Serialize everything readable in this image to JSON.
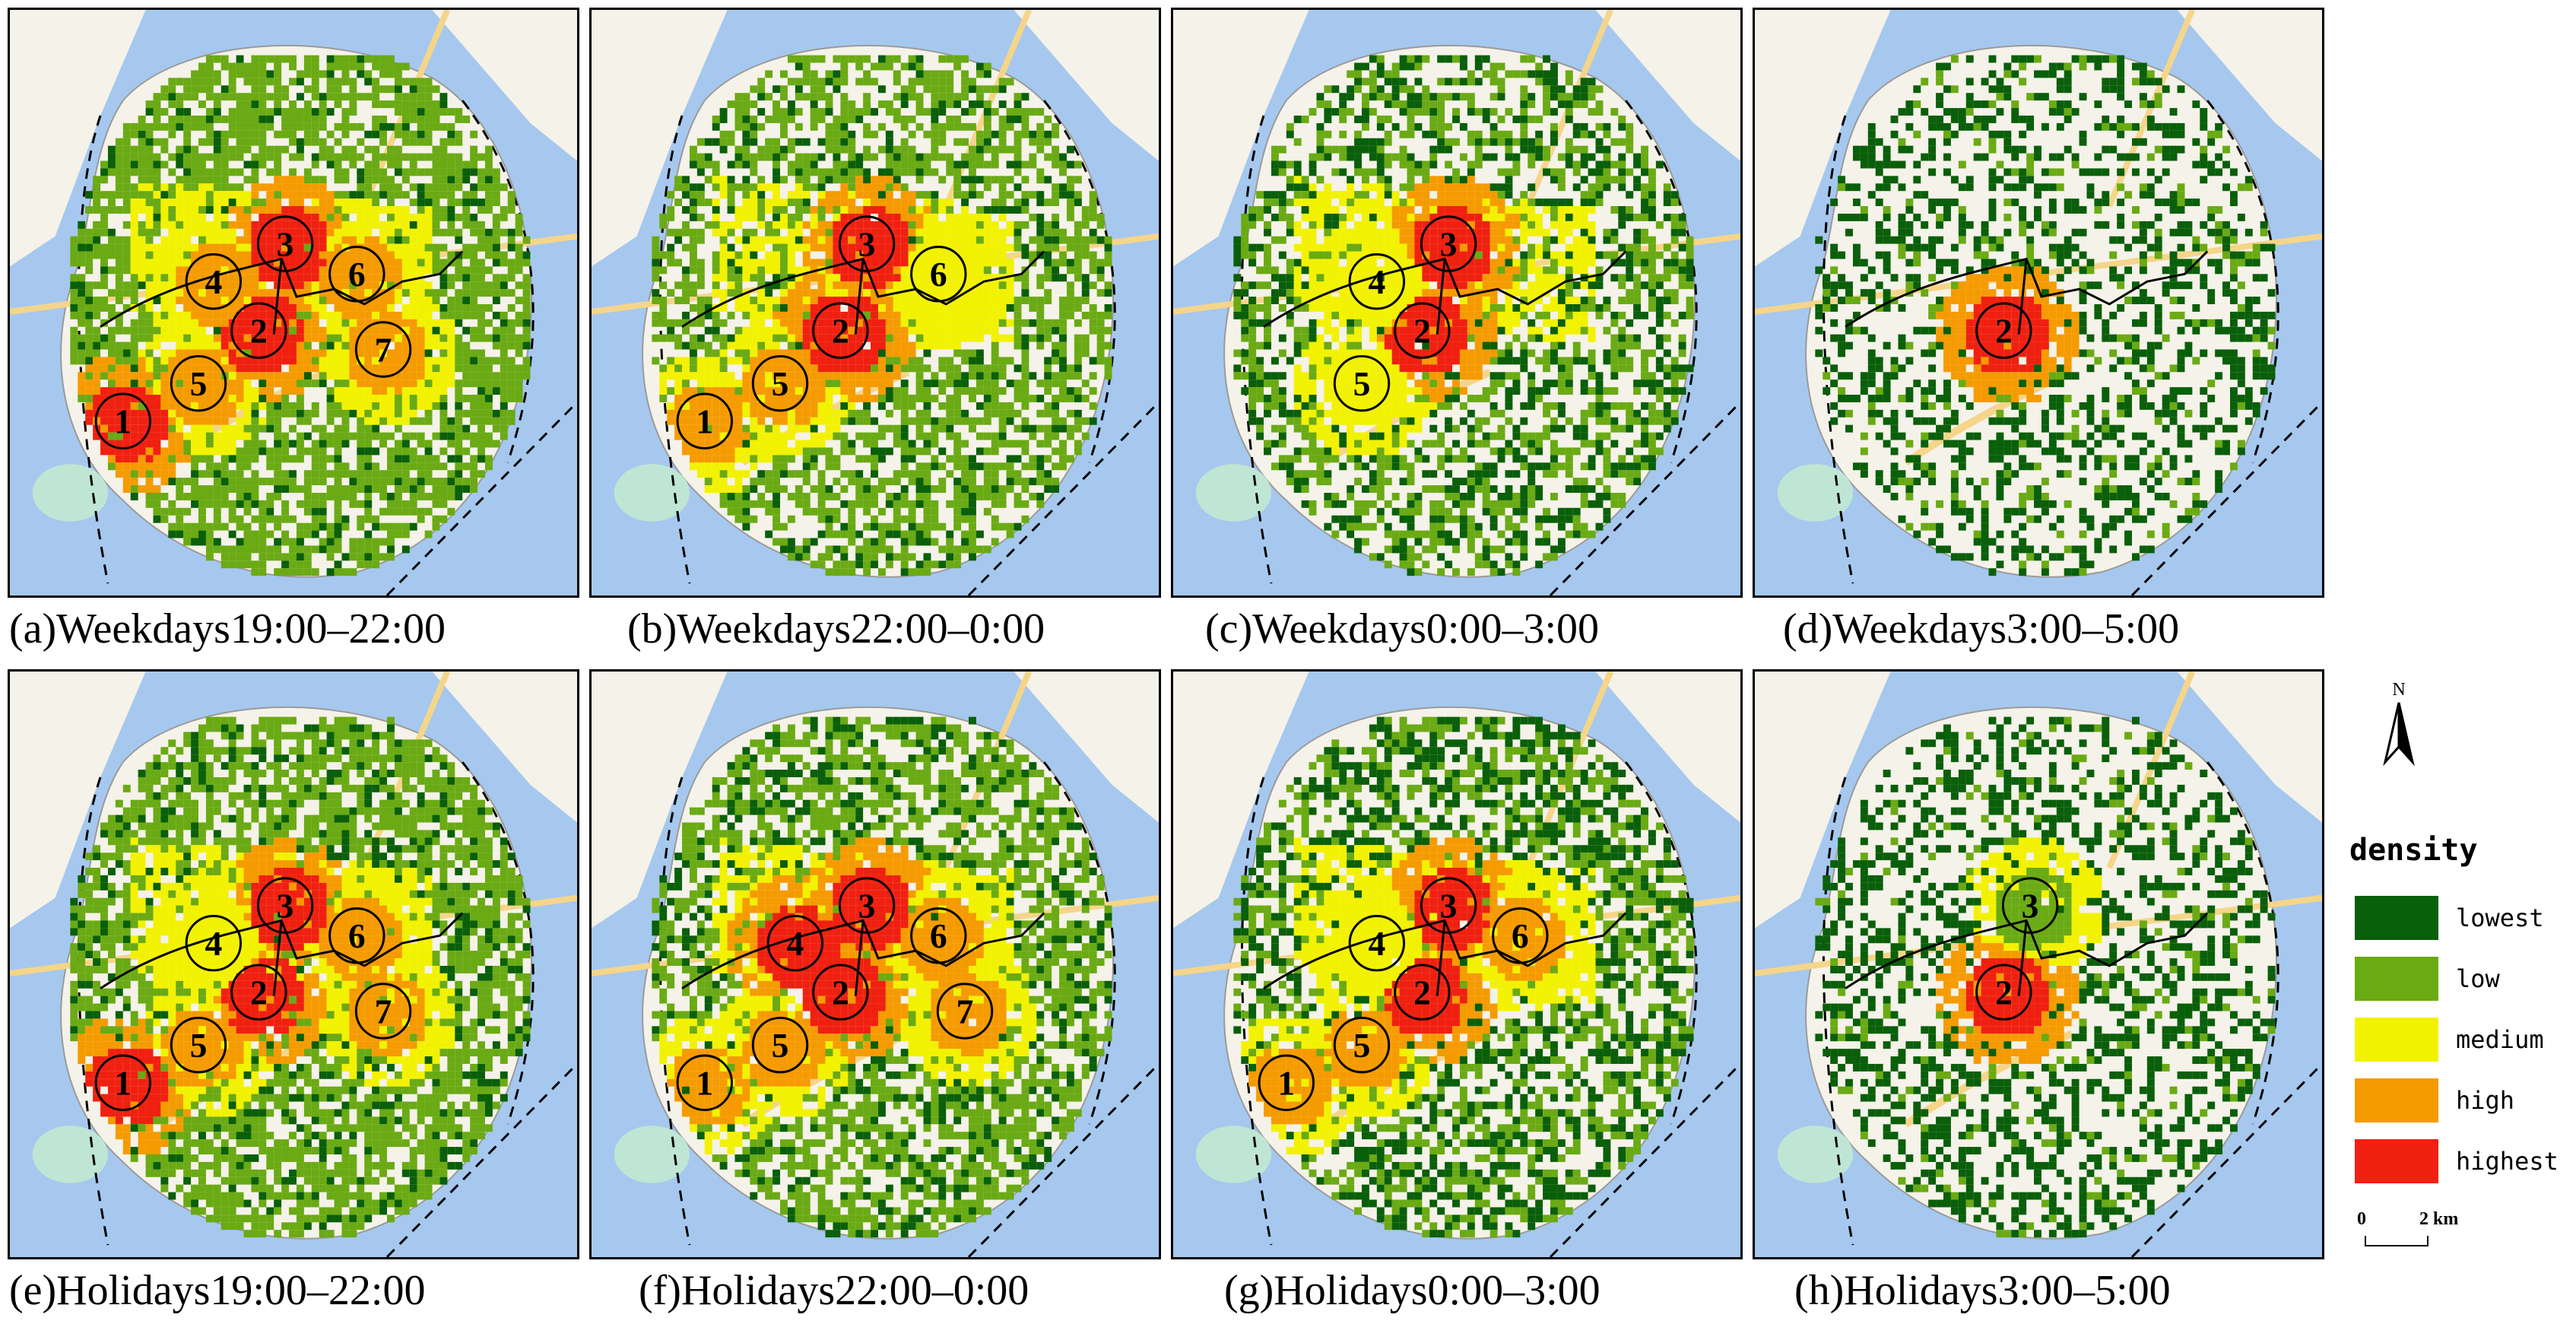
{
  "panels": [
    {
      "caption": "(a)Weekdays19:00–22:00"
    },
    {
      "caption": "(b)Weekdays22:00–0:00"
    },
    {
      "caption": "(c)Weekdays0:00–3:00"
    },
    {
      "caption": "(d)Weekdays3:00–5:00"
    },
    {
      "caption": "(e)Holidays19:00–22:00"
    },
    {
      "caption": "(f)Holidays22:00–0:00"
    },
    {
      "caption": "(g)Holidays0:00–3:00"
    },
    {
      "caption": "(h)Holidays3:00–5:00"
    }
  ],
  "hotspots": [
    [
      {
        "n": "1",
        "level": "highest"
      },
      {
        "n": "2",
        "level": "highest"
      },
      {
        "n": "3",
        "level": "highest"
      },
      {
        "n": "4",
        "level": "high"
      },
      {
        "n": "5",
        "level": "high"
      },
      {
        "n": "6",
        "level": "high"
      },
      {
        "n": "7",
        "level": "high"
      }
    ],
    [
      {
        "n": "1",
        "level": "high"
      },
      {
        "n": "2",
        "level": "highest"
      },
      {
        "n": "3",
        "level": "highest"
      },
      {
        "n": "5",
        "level": "high"
      },
      {
        "n": "6",
        "level": "medium"
      }
    ],
    [
      {
        "n": "2",
        "level": "highest"
      },
      {
        "n": "3",
        "level": "highest"
      },
      {
        "n": "4",
        "level": "medium"
      },
      {
        "n": "5",
        "level": "medium"
      }
    ],
    [
      {
        "n": "2",
        "level": "highest"
      }
    ],
    [
      {
        "n": "1",
        "level": "highest"
      },
      {
        "n": "2",
        "level": "highest"
      },
      {
        "n": "3",
        "level": "highest"
      },
      {
        "n": "4",
        "level": "medium"
      },
      {
        "n": "5",
        "level": "high"
      },
      {
        "n": "6",
        "level": "high"
      },
      {
        "n": "7",
        "level": "high"
      }
    ],
    [
      {
        "n": "1",
        "level": "high"
      },
      {
        "n": "2",
        "level": "highest"
      },
      {
        "n": "3",
        "level": "highest"
      },
      {
        "n": "4",
        "level": "highest"
      },
      {
        "n": "5",
        "level": "high"
      },
      {
        "n": "6",
        "level": "high"
      },
      {
        "n": "7",
        "level": "high"
      }
    ],
    [
      {
        "n": "1",
        "level": "high"
      },
      {
        "n": "2",
        "level": "highest"
      },
      {
        "n": "3",
        "level": "highest"
      },
      {
        "n": "4",
        "level": "medium"
      },
      {
        "n": "5",
        "level": "high"
      },
      {
        "n": "6",
        "level": "high"
      }
    ],
    [
      {
        "n": "2",
        "level": "highest"
      },
      {
        "n": "3",
        "level": "low"
      }
    ]
  ],
  "legend": {
    "title": "density",
    "items": [
      {
        "label": "lowest",
        "color": "#0a5f0a"
      },
      {
        "label": "low",
        "color": "#6aaa14"
      },
      {
        "label": "medium",
        "color": "#f2f200"
      },
      {
        "label": "high",
        "color": "#f59b00"
      },
      {
        "label": "highest",
        "color": "#f02010"
      }
    ]
  },
  "north_arrow": {
    "label": "N",
    "icon": "north-arrow-icon"
  },
  "scale_bar": {
    "start": "0",
    "end": "2 km"
  },
  "colors": {
    "sea": "#a6c8ee",
    "land": "#f5f2e9",
    "road_major": "#f5d58a",
    "park": "#bfe6d4"
  }
}
